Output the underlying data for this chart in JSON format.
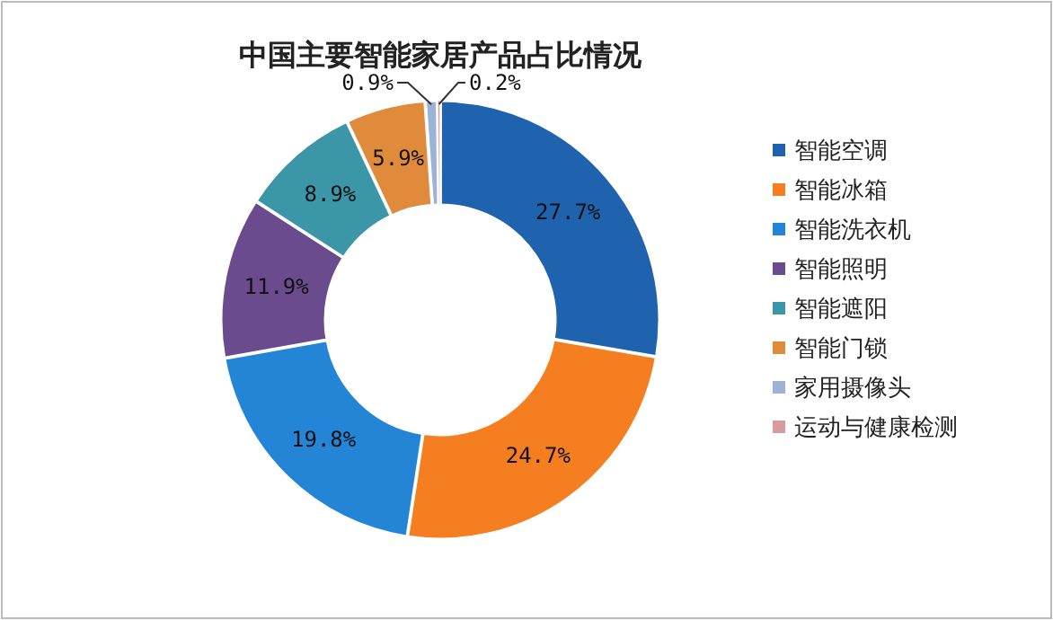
{
  "chart_data": {
    "type": "donut",
    "title": "中国主要智能家居产品占比情况",
    "categories": [
      "智能空调",
      "智能冰箱",
      "智能洗衣机",
      "智能照明",
      "智能遮阳",
      "智能门锁",
      "家用摄像头",
      "运动与健康检测"
    ],
    "values": [
      27.7,
      24.7,
      19.8,
      11.9,
      8.9,
      5.9,
      0.9,
      0.2
    ],
    "colors": [
      "#1f63ae",
      "#f57e21",
      "#2484d6",
      "#6a4b8e",
      "#3b96a8",
      "#e08b3c",
      "#9cb2d6",
      "#d99a9e"
    ],
    "value_labels": [
      "27.7%",
      "24.7%",
      "19.8%",
      "11.9%",
      "8.9%",
      "5.9%",
      "0.9%",
      "0.2%"
    ],
    "legend": "right"
  }
}
